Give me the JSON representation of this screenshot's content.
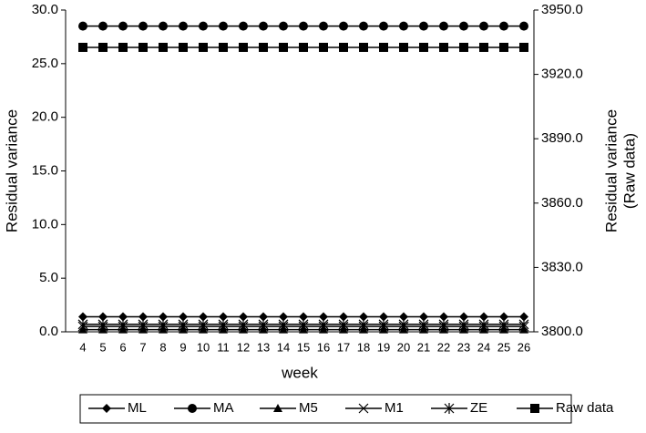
{
  "chart_data": {
    "type": "line",
    "xlabel": "week",
    "ylabel": "Residual variance",
    "y2label": [
      "Residual variance",
      "(Raw data)"
    ],
    "categories": [
      "4",
      "5",
      "6",
      "7",
      "8",
      "9",
      "10",
      "11",
      "12",
      "13",
      "14",
      "15",
      "16",
      "17",
      "18",
      "19",
      "20",
      "21",
      "22",
      "23",
      "24",
      "25",
      "26"
    ],
    "ylim": [
      0,
      30
    ],
    "yticks": [
      {
        "value": 0,
        "label": "0.0"
      },
      {
        "value": 5,
        "label": "5.0"
      },
      {
        "value": 10,
        "label": "10.0"
      },
      {
        "value": 15,
        "label": "15.0"
      },
      {
        "value": 20,
        "label": "20.0"
      },
      {
        "value": 25,
        "label": "25.0"
      },
      {
        "value": 30,
        "label": "30.0"
      }
    ],
    "y2lim": [
      3800,
      3950
    ],
    "y2ticks": [
      {
        "value": 3800,
        "label": "3800.0"
      },
      {
        "value": 3830,
        "label": "3830.0"
      },
      {
        "value": 3860,
        "label": "3860.0"
      },
      {
        "value": 3890,
        "label": "3890.0"
      },
      {
        "value": 3920,
        "label": "3920.0"
      },
      {
        "value": 3950,
        "label": "3950.0"
      }
    ],
    "legend": "bottom",
    "series": [
      {
        "name": "ML",
        "color": "#000000",
        "marker": "diamond",
        "values": [
          1.4,
          1.4,
          1.4,
          1.4,
          1.4,
          1.4,
          1.4,
          1.4,
          1.4,
          1.4,
          1.4,
          1.4,
          1.4,
          1.4,
          1.4,
          1.4,
          1.4,
          1.4,
          1.4,
          1.4,
          1.4,
          1.4,
          1.4
        ]
      },
      {
        "name": "MA",
        "color": "#000000",
        "marker": "circle",
        "values": [
          28.5,
          28.5,
          28.5,
          28.5,
          28.5,
          28.5,
          28.5,
          28.5,
          28.5,
          28.5,
          28.5,
          28.5,
          28.5,
          28.5,
          28.5,
          28.5,
          28.5,
          28.5,
          28.5,
          28.5,
          28.5,
          28.5,
          28.5
        ]
      },
      {
        "name": "M5",
        "color": "#000000",
        "marker": "triangle",
        "values": [
          0.2,
          0.2,
          0.2,
          0.2,
          0.2,
          0.2,
          0.2,
          0.2,
          0.2,
          0.2,
          0.2,
          0.2,
          0.2,
          0.2,
          0.2,
          0.2,
          0.2,
          0.2,
          0.2,
          0.2,
          0.2,
          0.2,
          0.2
        ]
      },
      {
        "name": "M1",
        "color": "#000000",
        "marker": "x",
        "values": [
          0.7,
          0.7,
          0.7,
          0.7,
          0.7,
          0.7,
          0.7,
          0.7,
          0.7,
          0.7,
          0.7,
          0.7,
          0.7,
          0.7,
          0.7,
          0.7,
          0.7,
          0.7,
          0.7,
          0.7,
          0.7,
          0.7,
          0.7
        ]
      },
      {
        "name": "ZE",
        "color": "#000000",
        "marker": "star",
        "values": [
          0.5,
          0.5,
          0.5,
          0.5,
          0.5,
          0.5,
          0.5,
          0.5,
          0.5,
          0.5,
          0.5,
          0.5,
          0.5,
          0.5,
          0.5,
          0.5,
          0.5,
          0.5,
          0.5,
          0.5,
          0.5,
          0.5,
          0.5
        ]
      },
      {
        "name": "Raw data",
        "color": "#000000",
        "marker": "square",
        "axis": "y2",
        "values": [
          3932.6,
          3932.6,
          3932.6,
          3932.6,
          3932.6,
          3932.6,
          3932.6,
          3932.6,
          3932.6,
          3932.6,
          3932.6,
          3932.6,
          3932.6,
          3932.6,
          3932.6,
          3932.6,
          3932.6,
          3932.6,
          3932.6,
          3932.6,
          3932.6,
          3932.6,
          3932.6
        ]
      }
    ]
  }
}
